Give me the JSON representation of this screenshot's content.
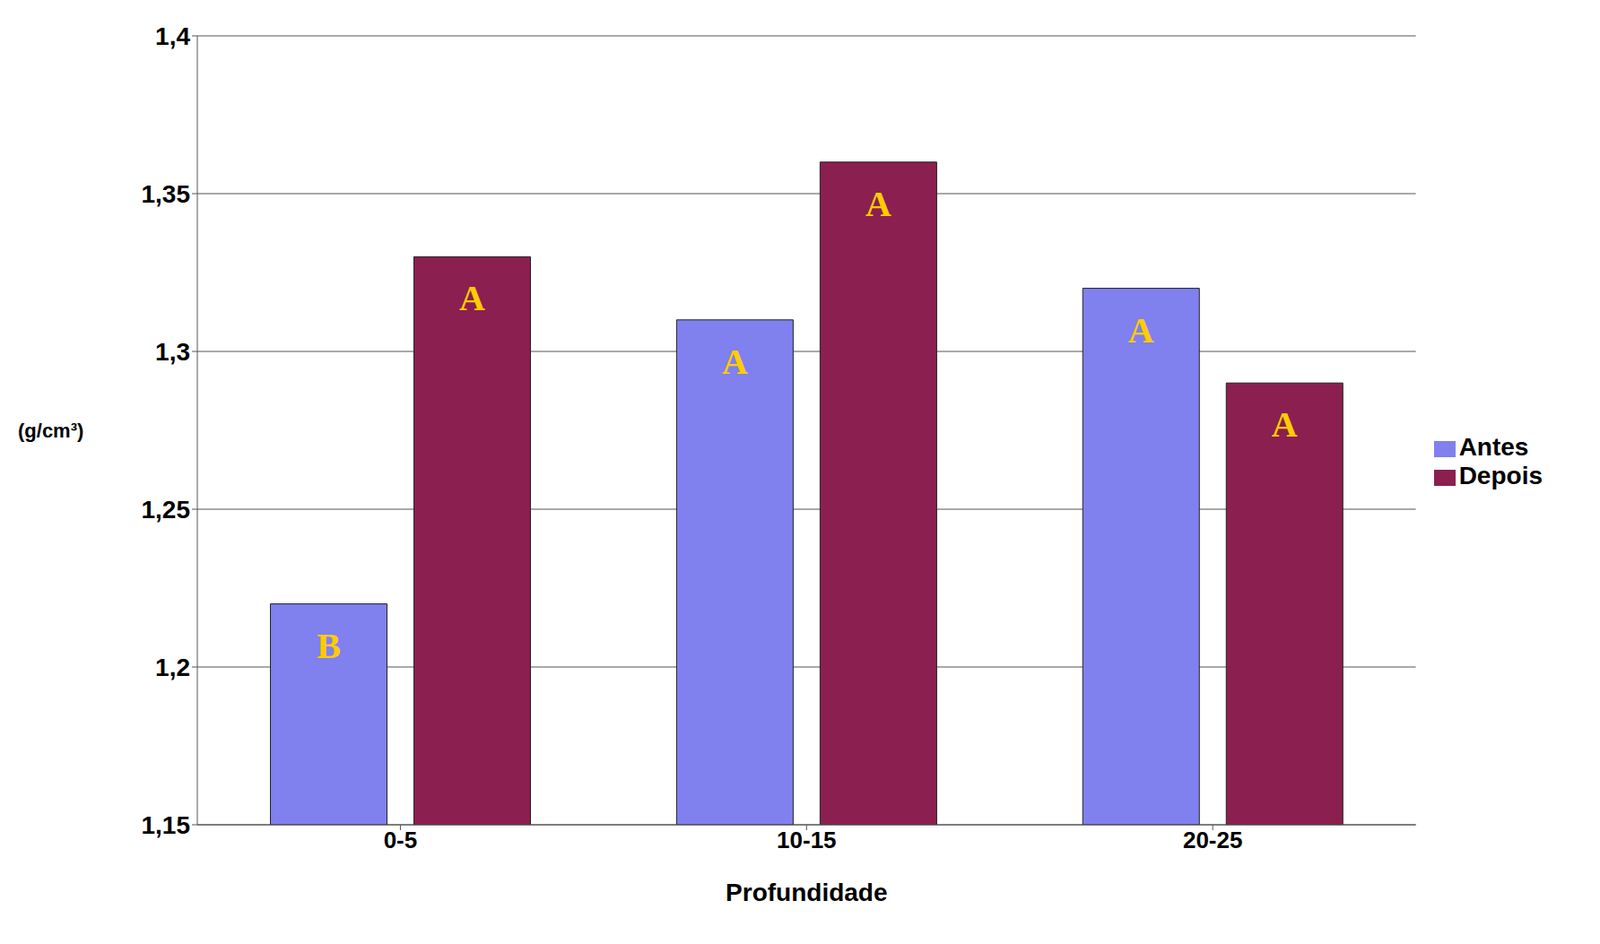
{
  "chart_data": {
    "type": "bar",
    "x_label": "Profundidade",
    "y_label": "(g/cm³)",
    "categories": [
      "0-5",
      "10-15",
      "20-25"
    ],
    "series": [
      {
        "name": "Antes",
        "color": "#8080ee",
        "values": [
          1.22,
          1.31,
          1.32
        ],
        "letters": [
          "B",
          "A",
          "A"
        ]
      },
      {
        "name": "Depois",
        "color": "#8b1f50",
        "values": [
          1.33,
          1.36,
          1.29
        ],
        "letters": [
          "A",
          "A",
          "A"
        ]
      }
    ],
    "ylim": [
      1.15,
      1.4
    ],
    "yticks": [
      {
        "value": 1.15,
        "label": "1,15"
      },
      {
        "value": 1.2,
        "label": "1,2"
      },
      {
        "value": 1.25,
        "label": "1,25"
      },
      {
        "value": 1.3,
        "label": "1,3"
      },
      {
        "value": 1.35,
        "label": "1,35"
      },
      {
        "value": 1.4,
        "label": "1,4"
      }
    ],
    "grid": true,
    "legend": "right"
  }
}
